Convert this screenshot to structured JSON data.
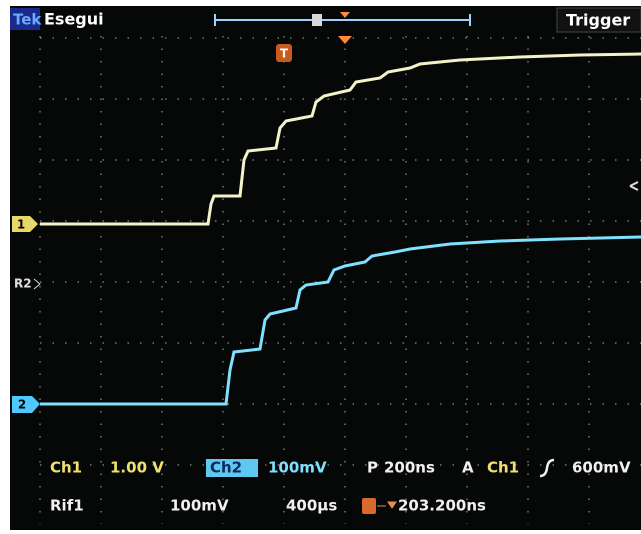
{
  "header": {
    "brand": "Tek",
    "mode": "Esegui",
    "menu": "Trigger"
  },
  "markers": {
    "trigger": "T",
    "ch1": "1",
    "ref2": "R2",
    "ch2": "2"
  },
  "status": {
    "ch1_label": "Ch1",
    "ch1_scale": "1.00 V",
    "ch2_label": "Ch2",
    "ch2_scale": "100mV",
    "timebase_label": "P",
    "timebase": "200ns",
    "trigger_label": "A",
    "trigger_source": "Ch1",
    "trigger_level": "600mV",
    "ref1_label": "Rif1",
    "ref1_scale": "100mV",
    "ref1_time": "400µs",
    "trigger_position": "203.200ns"
  }
}
